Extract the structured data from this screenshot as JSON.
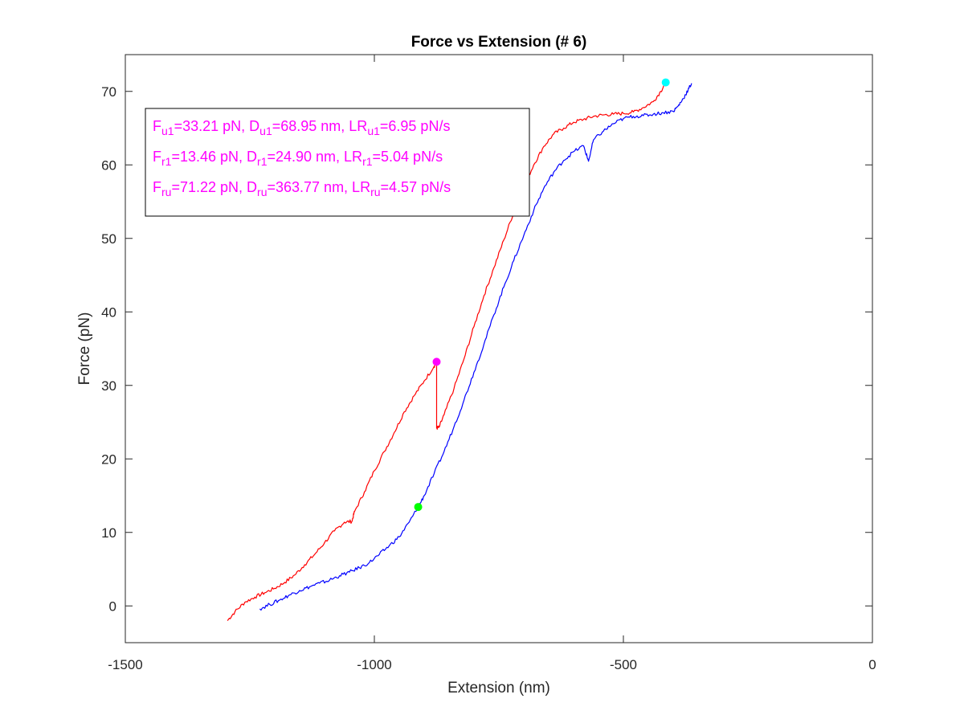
{
  "chart_data": {
    "type": "line",
    "title": "Force vs Extension (# 6)",
    "xlabel": "Extension (nm)",
    "ylabel": "Force (pN)",
    "xlim": [
      -1500,
      0
    ],
    "ylim": [
      -5,
      75
    ],
    "xticks": [
      -1500,
      -1000,
      -500,
      0
    ],
    "yticks": [
      0,
      10,
      20,
      30,
      40,
      50,
      60,
      70
    ],
    "grid": false,
    "series": [
      {
        "color": "#ff0000",
        "x": [
          -1295,
          -1280,
          -1260,
          -1240,
          -1220,
          -1200,
          -1180,
          -1160,
          -1140,
          -1120,
          -1100,
          -1080,
          -1060,
          -1045,
          -1040,
          -1020,
          -1000,
          -980,
          -960,
          -940,
          -920,
          -900,
          -880,
          -875,
          -875,
          -870,
          -860,
          -840,
          -820,
          -800,
          -780,
          -760,
          -740,
          -720,
          -700,
          -680,
          -660,
          -640,
          -620,
          -600,
          -580,
          -560,
          -540,
          -520,
          -500,
          -480,
          -460,
          -440,
          -425,
          -415
        ],
        "y": [
          -2.0,
          -0.8,
          0.5,
          1.2,
          1.8,
          2.4,
          3.2,
          4.2,
          5.6,
          7.0,
          8.6,
          10.2,
          11.4,
          11.5,
          12.8,
          15.5,
          18.4,
          21.0,
          23.6,
          26.4,
          28.6,
          30.6,
          32.6,
          33.2,
          24.2,
          24.3,
          26.0,
          29.6,
          33.6,
          38.0,
          42.2,
          46.0,
          49.8,
          53.6,
          57.0,
          60.0,
          62.5,
          64.2,
          65.0,
          65.8,
          66.2,
          66.6,
          66.8,
          66.9,
          67.0,
          67.2,
          67.8,
          68.6,
          70.0,
          71.2
        ]
      },
      {
        "color": "#0000ff",
        "x": [
          -1230,
          -1210,
          -1190,
          -1170,
          -1150,
          -1130,
          -1110,
          -1090,
          -1070,
          -1050,
          -1030,
          -1010,
          -990,
          -970,
          -950,
          -930,
          -912,
          -900,
          -880,
          -860,
          -840,
          -820,
          -800,
          -780,
          -760,
          -740,
          -720,
          -700,
          -680,
          -660,
          -640,
          -620,
          -600,
          -580,
          -570,
          -560,
          -540,
          -520,
          -500,
          -480,
          -460,
          -440,
          -420,
          -400,
          -390,
          -380,
          -370,
          -363
        ],
        "y": [
          -0.4,
          0.2,
          0.8,
          1.5,
          2.1,
          2.6,
          3.1,
          3.5,
          4.1,
          4.6,
          5.2,
          5.9,
          7.0,
          8.2,
          9.4,
          11.4,
          13.46,
          15.0,
          18.0,
          21.0,
          24.4,
          28.0,
          31.8,
          35.6,
          39.6,
          43.4,
          47.0,
          50.4,
          53.8,
          56.8,
          59.0,
          60.6,
          61.8,
          62.6,
          60.5,
          63.4,
          64.6,
          65.6,
          66.3,
          66.6,
          66.7,
          66.9,
          67.1,
          67.3,
          68.0,
          69.0,
          70.2,
          71.1
        ]
      }
    ],
    "markers": [
      {
        "x": -875,
        "y": 33.21,
        "color": "#ff00ff"
      },
      {
        "x": -912,
        "y": 13.46,
        "color": "#00ff00"
      },
      {
        "x": -415,
        "y": 71.22,
        "color": "#00ffff"
      }
    ],
    "annotation": {
      "lines": [
        [
          {
            "t": "F",
            "s": false
          },
          {
            "t": "u1",
            "s": true
          },
          {
            "t": "=33.21 pN, D",
            "s": false
          },
          {
            "t": "u1",
            "s": true
          },
          {
            "t": "=68.95 nm, LR",
            "s": false
          },
          {
            "t": "u1",
            "s": true
          },
          {
            "t": "=6.95 pN/s",
            "s": false
          }
        ],
        [
          {
            "t": "F",
            "s": false
          },
          {
            "t": "r1",
            "s": true
          },
          {
            "t": "=13.46 pN, D",
            "s": false
          },
          {
            "t": "r1",
            "s": true
          },
          {
            "t": "=24.90 nm, LR",
            "s": false
          },
          {
            "t": "r1",
            "s": true
          },
          {
            "t": "=5.04 pN/s",
            "s": false
          }
        ],
        [
          {
            "t": "F",
            "s": false
          },
          {
            "t": "ru",
            "s": true
          },
          {
            "t": "=71.22 pN, D",
            "s": false
          },
          {
            "t": "ru",
            "s": true
          },
          {
            "t": "=363.77 nm, LR",
            "s": false
          },
          {
            "t": "ru",
            "s": true
          },
          {
            "t": "=4.57 pN/s",
            "s": false
          }
        ]
      ],
      "color": "#ff00ff",
      "placement": "top-left"
    }
  }
}
